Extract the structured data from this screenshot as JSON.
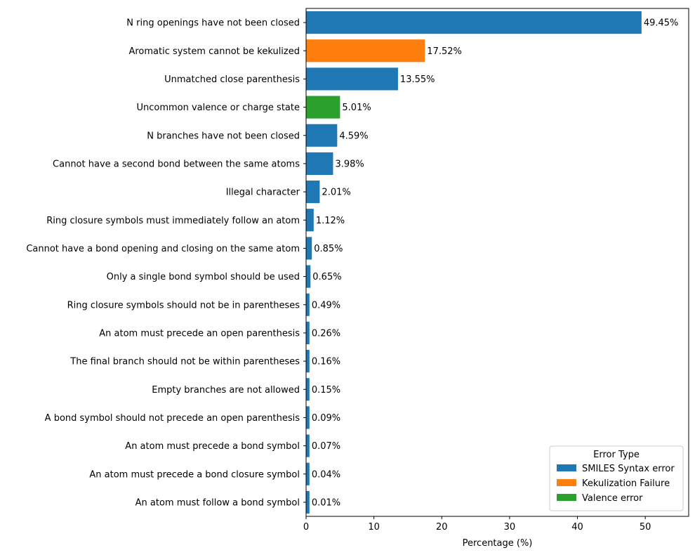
{
  "chart_data": {
    "type": "bar",
    "orientation": "horizontal",
    "title": "",
    "xlabel": "Percentage (%)",
    "ylabel": "",
    "xlim": [
      0,
      56.4
    ],
    "xticks": [
      0,
      10,
      20,
      30,
      40,
      50
    ],
    "grid": false,
    "categories": [
      "N ring openings have not been closed",
      "Aromatic system cannot be kekulized",
      "Unmatched close parenthesis",
      "Uncommon valence or charge state",
      "N branches have not been closed",
      "Cannot have a second bond between the same atoms",
      "Illegal character",
      "Ring closure symbols must immediately follow an atom",
      "Cannot have a bond opening and closing on the same atom",
      "Only a single bond symbol should be used",
      "Ring closure symbols should not be in parentheses",
      "An atom must precede an open parenthesis",
      "The final branch should not be within parentheses",
      "Empty branches are not allowed",
      "A bond symbol should not precede an open parenthesis",
      "An atom must precede a bond symbol",
      "An atom must precede a bond closure symbol",
      "An atom must follow a bond symbol"
    ],
    "values": [
      49.45,
      17.52,
      13.55,
      5.01,
      4.59,
      3.98,
      2.01,
      1.12,
      0.85,
      0.65,
      0.49,
      0.26,
      0.16,
      0.15,
      0.09,
      0.07,
      0.04,
      0.01
    ],
    "value_labels": [
      "49.45%",
      "17.52%",
      "13.55%",
      "5.01%",
      "4.59%",
      "3.98%",
      "2.01%",
      "1.12%",
      "0.85%",
      "0.65%",
      "0.49%",
      "0.26%",
      "0.16%",
      "0.15%",
      "0.09%",
      "0.07%",
      "0.04%",
      "0.01%"
    ],
    "error_types": [
      "SMILES Syntax error",
      "Kekulization Failure",
      "SMILES Syntax error",
      "Valence error",
      "SMILES Syntax error",
      "SMILES Syntax error",
      "SMILES Syntax error",
      "SMILES Syntax error",
      "SMILES Syntax error",
      "SMILES Syntax error",
      "SMILES Syntax error",
      "SMILES Syntax error",
      "SMILES Syntax error",
      "SMILES Syntax error",
      "SMILES Syntax error",
      "SMILES Syntax error",
      "SMILES Syntax error",
      "SMILES Syntax error"
    ],
    "min_display_value": 0.5,
    "legend": {
      "title": "Error Type",
      "placement": "bottom-right",
      "entries": [
        {
          "label": "SMILES Syntax error",
          "color": "#1f77b4"
        },
        {
          "label": "Kekulization Failure",
          "color": "#ff7f0e"
        },
        {
          "label": "Valence error",
          "color": "#2ca02c"
        }
      ]
    }
  }
}
